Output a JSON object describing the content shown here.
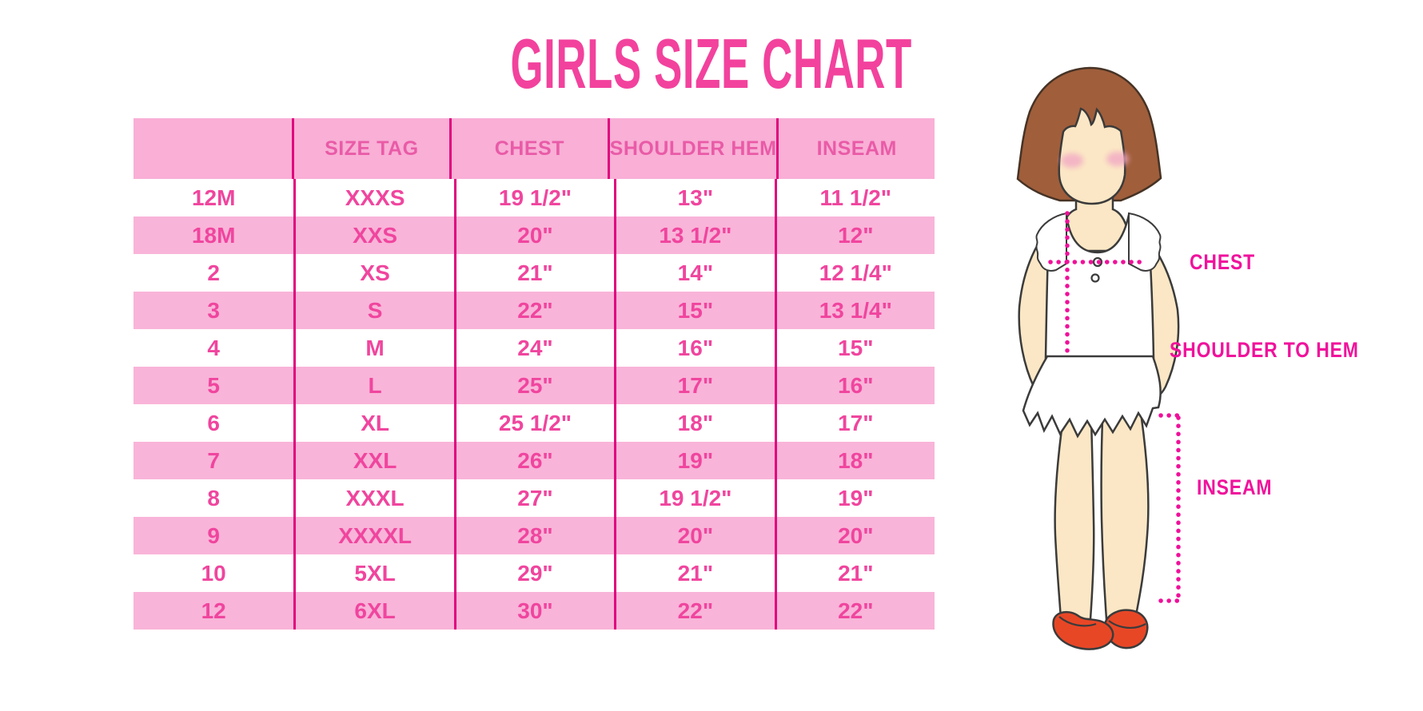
{
  "title": "GIRLS SIZE CHART",
  "table": {
    "headers": [
      "",
      "SIZE TAG",
      "CHEST",
      "SHOULDER HEM",
      "INSEAM"
    ],
    "rows": [
      [
        "12M",
        "XXXS",
        "19 1/2\"",
        "13\"",
        "11 1/2\""
      ],
      [
        "18M",
        "XXS",
        "20\"",
        "13 1/2\"",
        "12\""
      ],
      [
        "2",
        "XS",
        "21\"",
        "14\"",
        "12 1/4\""
      ],
      [
        "3",
        "S",
        "22\"",
        "15\"",
        "13 1/4\""
      ],
      [
        "4",
        "M",
        "24\"",
        "16\"",
        "15\""
      ],
      [
        "5",
        "L",
        "25\"",
        "17\"",
        "16\""
      ],
      [
        "6",
        "XL",
        "25 1/2\"",
        "18\"",
        "17\""
      ],
      [
        "7",
        "XXL",
        "26\"",
        "19\"",
        "18\""
      ],
      [
        "8",
        "XXXL",
        "27\"",
        "19 1/2\"",
        "19\""
      ],
      [
        "9",
        "XXXXL",
        "28\"",
        "20\"",
        "20\""
      ],
      [
        "10",
        "5XL",
        "29\"",
        "21\"",
        "21\""
      ],
      [
        "12",
        "6XL",
        "30\"",
        "22\"",
        "22\""
      ]
    ]
  },
  "diagram": {
    "chest_label": "CHEST",
    "shoulder_to_hem_label": "SHOULDER TO HEM",
    "inseam_label": "INSEAM",
    "figure_description": "girl with brown bob haircut, white ruffled dress, red mary-jane shoes, dotted measurement lines"
  },
  "colors": {
    "title_pink": "#F2429D",
    "header_row_bg": "#F9AFD6",
    "striped_row_bg": "#F9B4D9",
    "divider_line": "#E0067E",
    "header_text": "#E95BA7",
    "cell_text": "#F0459E",
    "label_magenta": "#F0129C",
    "dotted_line": "#F0109A",
    "hair_brown": "#A05E3B",
    "skin": "#FBE7C5",
    "shoe_red": "#E84726"
  },
  "chart_data": {
    "type": "table",
    "title": "GIRLS SIZE CHART",
    "columns": [
      "",
      "SIZE TAG",
      "CHEST",
      "SHOULDER HEM",
      "INSEAM"
    ],
    "units": "inches",
    "rows": [
      [
        "12M",
        "XXXS",
        "19 1/2\"",
        "13\"",
        "11 1/2\""
      ],
      [
        "18M",
        "XXS",
        "20\"",
        "13 1/2\"",
        "12\""
      ],
      [
        "2",
        "XS",
        "21\"",
        "14\"",
        "12 1/4\""
      ],
      [
        "3",
        "S",
        "22\"",
        "15\"",
        "13 1/4\""
      ],
      [
        "4",
        "M",
        "24\"",
        "16\"",
        "15\""
      ],
      [
        "5",
        "L",
        "25\"",
        "17\"",
        "16\""
      ],
      [
        "6",
        "XL",
        "25 1/2\"",
        "18\"",
        "17\""
      ],
      [
        "7",
        "XXL",
        "26\"",
        "19\"",
        "18\""
      ],
      [
        "8",
        "XXXL",
        "27\"",
        "19 1/2\"",
        "19\""
      ],
      [
        "9",
        "XXXXL",
        "28\"",
        "20\"",
        "20\""
      ],
      [
        "10",
        "5XL",
        "29\"",
        "21\"",
        "21\""
      ],
      [
        "12",
        "6XL",
        "30\"",
        "22\"",
        "22\""
      ]
    ]
  }
}
